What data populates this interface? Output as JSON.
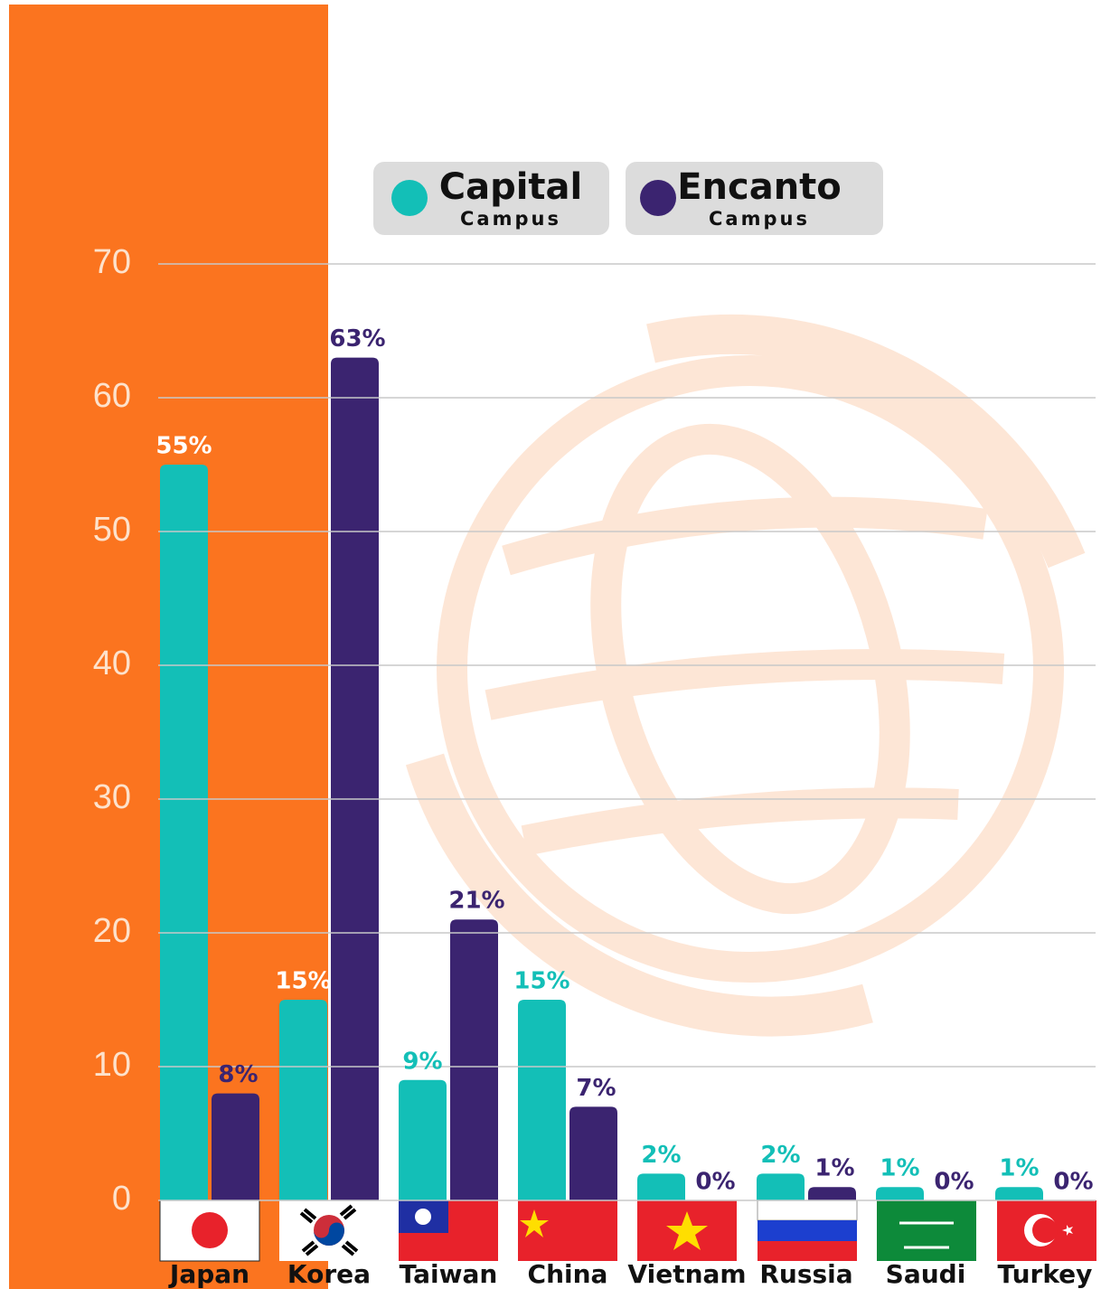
{
  "chart_data": {
    "type": "bar",
    "categories": [
      "Japan",
      "Korea",
      "Taiwan",
      "China",
      "Vietnam",
      "Russia",
      "Saudi",
      "Turkey"
    ],
    "series": [
      {
        "name": "Capital",
        "subname": "Campus",
        "color": "#13bfb7",
        "values": [
          55,
          15,
          9,
          15,
          2,
          2,
          1,
          1
        ],
        "value_labels": [
          "55%",
          "15%",
          "9%",
          "15%",
          "2%",
          "2%",
          "1%",
          "1%"
        ]
      },
      {
        "name": "Encanto",
        "subname": "Campus",
        "color": "#3b2470",
        "values": [
          8,
          63,
          21,
          7,
          0,
          1,
          0,
          0
        ],
        "value_labels": [
          "8%",
          "63%",
          "21%",
          "7%",
          "0%",
          "1%",
          "0%",
          "0%"
        ]
      }
    ],
    "ylim": [
      0,
      70
    ],
    "yticks": [
      0,
      10,
      20,
      30,
      40,
      50,
      60,
      70
    ],
    "grid": true
  }
}
